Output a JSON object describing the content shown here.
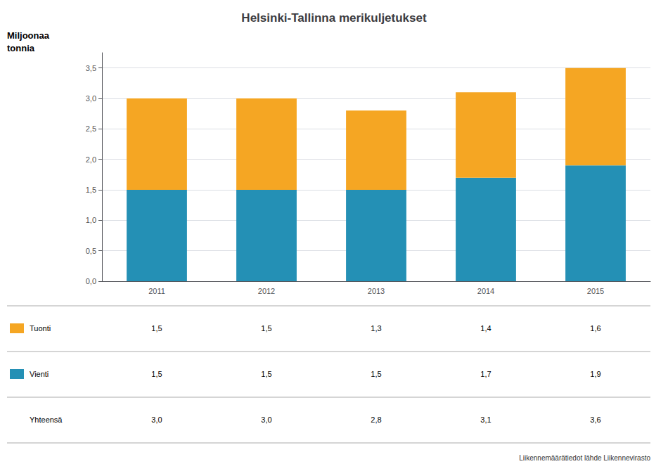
{
  "chart_data": {
    "type": "bar",
    "title": "Helsinki-Tallinna merikuljetukset",
    "ylabel": "Miljoonaa tonnia",
    "categories": [
      "2011",
      "2012",
      "2013",
      "2014",
      "2015"
    ],
    "stacked": true,
    "grid": true,
    "series": [
      {
        "name": "Vienti",
        "color": "#2490B5",
        "values": [
          1.5,
          1.5,
          1.5,
          1.7,
          1.9
        ],
        "value_labels": [
          "1,5",
          "1,5",
          "1,5",
          "1,7",
          "1,9"
        ]
      },
      {
        "name": "Tuonti",
        "color": "#F5A623",
        "values": [
          1.5,
          1.5,
          1.3,
          1.4,
          1.6
        ],
        "value_labels": [
          "1,5",
          "1,5",
          "1,3",
          "1,4",
          "1,6"
        ]
      }
    ],
    "totals_name": "Yhteensä",
    "totals": [
      3.0,
      3.0,
      2.8,
      3.1,
      3.6
    ],
    "total_labels": [
      "3,0",
      "3,0",
      "2,8",
      "3,1",
      "3,6"
    ],
    "ylim": [
      0,
      3.75
    ],
    "yticks": [
      {
        "value": 0.0,
        "label": "0,0"
      },
      {
        "value": 0.5,
        "label": "0,5"
      },
      {
        "value": 1.0,
        "label": "1,0"
      },
      {
        "value": 1.5,
        "label": "1,5"
      },
      {
        "value": 2.0,
        "label": "2,0"
      },
      {
        "value": 2.5,
        "label": "2,5"
      },
      {
        "value": 3.0,
        "label": "3,0"
      },
      {
        "value": 3.5,
        "label": "3,5"
      }
    ],
    "source": "Liikennemäärätiedot lähde Liikennevirasto"
  }
}
